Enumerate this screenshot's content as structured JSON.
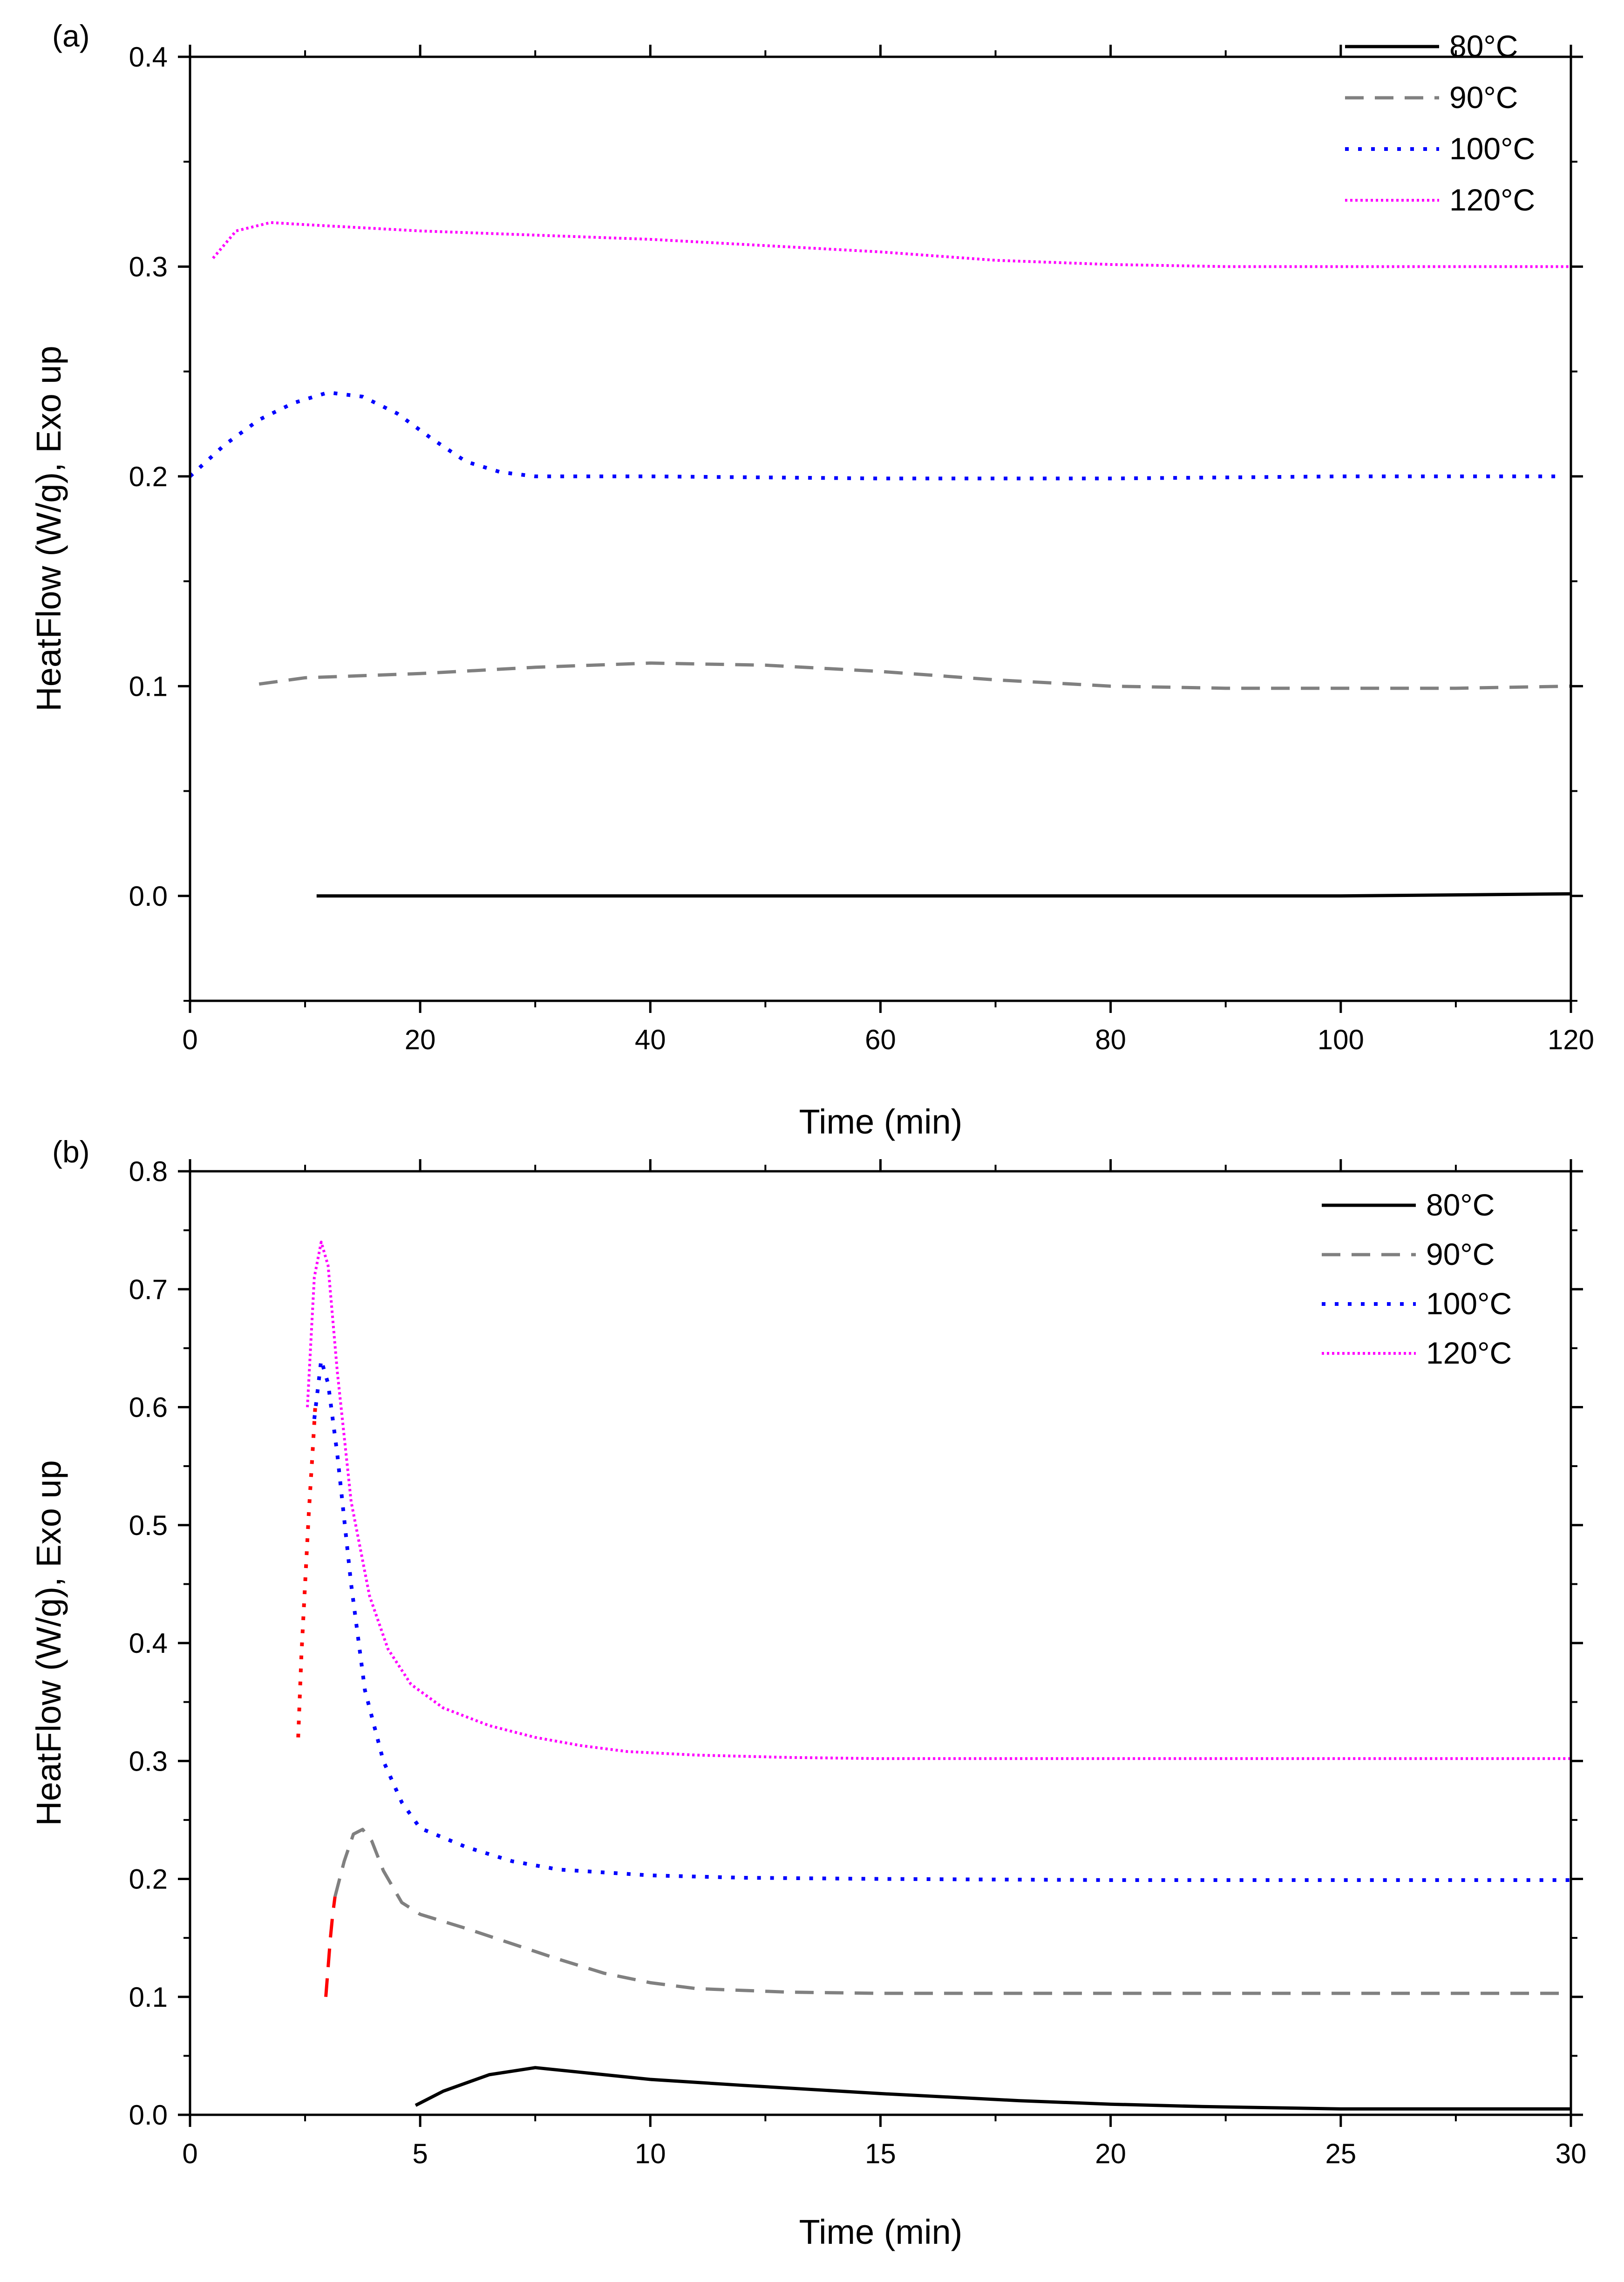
{
  "chart_data": [
    {
      "panel_label": "(a)",
      "type": "line",
      "xlabel": "Time (min)",
      "ylabel": "HeatFlow (W/g), Exo up",
      "xlim": [
        0,
        120
      ],
      "ylim": [
        -0.05,
        0.4
      ],
      "xticks": [
        0,
        20,
        40,
        60,
        80,
        100,
        120
      ],
      "xtick_labels": [
        "0",
        "20",
        "40",
        "60",
        "80",
        "100",
        "120"
      ],
      "yticks": [
        0.0,
        0.1,
        0.2,
        0.3,
        0.4
      ],
      "ytick_labels": [
        "0.0",
        "0.1",
        "0.2",
        "0.3",
        "0.4"
      ],
      "x_minor_step": 10,
      "y_minor_step": 0.05,
      "grid": false,
      "legend_position": "top-right",
      "series": [
        {
          "name": "80°C",
          "color": "#000000",
          "style": "solid",
          "x": [
            11,
            20,
            40,
            60,
            80,
            100,
            120
          ],
          "y": [
            0.0,
            0.0,
            0.0,
            0.0,
            0.0,
            0.0,
            0.001
          ]
        },
        {
          "name": "90°C",
          "color": "#808080",
          "style": "dash",
          "x": [
            6,
            10,
            20,
            30,
            40,
            50,
            60,
            70,
            80,
            90,
            100,
            110,
            120
          ],
          "y": [
            0.101,
            0.104,
            0.106,
            0.109,
            0.111,
            0.11,
            0.107,
            0.103,
            0.1,
            0.099,
            0.099,
            0.099,
            0.1
          ]
        },
        {
          "name": "100°C",
          "color": "#0000ff",
          "style": "dot",
          "x": [
            0,
            3,
            6,
            9,
            12,
            15,
            18,
            21,
            24,
            27,
            30,
            40,
            60,
            80,
            100,
            119
          ],
          "y": [
            0.2,
            0.215,
            0.227,
            0.235,
            0.24,
            0.238,
            0.23,
            0.218,
            0.207,
            0.202,
            0.2,
            0.2,
            0.199,
            0.199,
            0.2,
            0.2
          ]
        },
        {
          "name": "120°C",
          "color": "#ff00ff",
          "style": "finedot",
          "x": [
            2,
            4,
            7,
            10,
            20,
            30,
            40,
            50,
            60,
            70,
            80,
            90,
            100,
            120
          ],
          "y": [
            0.304,
            0.317,
            0.321,
            0.32,
            0.317,
            0.315,
            0.313,
            0.31,
            0.307,
            0.303,
            0.301,
            0.3,
            0.3,
            0.3
          ]
        }
      ]
    },
    {
      "panel_label": "(b)",
      "type": "line",
      "xlabel": "Time (min)",
      "ylabel": "HeatFlow (W/g), Exo up",
      "xlim": [
        0,
        30
      ],
      "ylim": [
        0,
        0.8
      ],
      "xticks": [
        0,
        5,
        10,
        15,
        20,
        25,
        30
      ],
      "xtick_labels": [
        "0",
        "5",
        "10",
        "15",
        "20",
        "25",
        "30"
      ],
      "yticks": [
        0.0,
        0.1,
        0.2,
        0.3,
        0.4,
        0.5,
        0.6,
        0.7,
        0.8
      ],
      "ytick_labels": [
        "0.0",
        "0.1",
        "0.2",
        "0.3",
        "0.4",
        "0.5",
        "0.6",
        "0.7",
        "0.8"
      ],
      "x_minor_step": 2.5,
      "y_minor_step": 0.05,
      "grid": false,
      "legend_position": "top-right",
      "series": [
        {
          "name": "80°C",
          "color": "#000000",
          "style": "solid",
          "x": [
            4.9,
            5.5,
            6.5,
            7.5,
            8.5,
            10,
            12,
            15,
            18,
            20,
            22,
            25,
            30
          ],
          "y": [
            0.008,
            0.02,
            0.034,
            0.04,
            0.036,
            0.03,
            0.025,
            0.018,
            0.012,
            0.009,
            0.007,
            0.005,
            0.005
          ]
        },
        {
          "name": "90°C",
          "color": "#808080",
          "style": "dash",
          "x": [
            3.15,
            3.35,
            3.55,
            3.75,
            3.95,
            4.2,
            4.6,
            5.0,
            6.0,
            7.0,
            8.0,
            9.0,
            10,
            11,
            13,
            15,
            20,
            25,
            30
          ],
          "y": [
            0.185,
            0.215,
            0.238,
            0.242,
            0.232,
            0.207,
            0.18,
            0.17,
            0.158,
            0.145,
            0.132,
            0.12,
            0.112,
            0.107,
            0.104,
            0.103,
            0.103,
            0.103,
            0.103
          ]
        },
        {
          "name": "100°C",
          "color": "#0000ff",
          "style": "dot",
          "x": [
            2.7,
            2.85,
            3.0,
            3.2,
            3.5,
            3.8,
            4.2,
            4.6,
            5.0,
            6.0,
            7.0,
            8.0,
            10,
            12,
            15,
            20,
            25,
            30
          ],
          "y": [
            0.59,
            0.64,
            0.62,
            0.56,
            0.45,
            0.36,
            0.3,
            0.265,
            0.243,
            0.227,
            0.215,
            0.208,
            0.203,
            0.201,
            0.2,
            0.199,
            0.199,
            0.199
          ]
        },
        {
          "name": "120°C",
          "color": "#ff00ff",
          "style": "finedot",
          "x": [
            2.55,
            2.7,
            2.85,
            3.0,
            3.2,
            3.5,
            3.9,
            4.3,
            4.8,
            5.5,
            6.5,
            7.5,
            8.5,
            9.5,
            11,
            13,
            15,
            20,
            25,
            30
          ],
          "y": [
            0.6,
            0.71,
            0.74,
            0.72,
            0.63,
            0.52,
            0.44,
            0.395,
            0.365,
            0.345,
            0.33,
            0.32,
            0.313,
            0.308,
            0.305,
            0.303,
            0.302,
            0.302,
            0.302,
            0.302
          ]
        },
        {
          "color": "#ff0000",
          "style": "dash",
          "x": [
            2.95,
            3.0,
            3.05,
            3.1,
            3.15
          ],
          "y": [
            0.1,
            0.125,
            0.15,
            0.17,
            0.185
          ]
        },
        {
          "color": "#ff0000",
          "style": "dot",
          "x": [
            2.35,
            2.42,
            2.5,
            2.58,
            2.66,
            2.72
          ],
          "y": [
            0.32,
            0.39,
            0.45,
            0.51,
            0.56,
            0.6
          ]
        }
      ]
    }
  ]
}
